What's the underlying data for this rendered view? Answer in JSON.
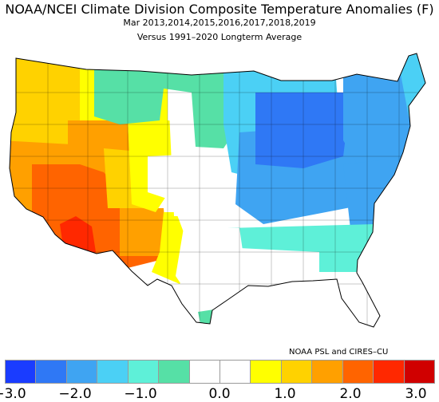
{
  "title": "NOAA/NCEI Climate Division Composite Temperature Anomalies (F)",
  "subtitle": "Mar  2013,2014,2015,2016,2017,2018,2019",
  "baseline": "Versus 1991–2020 Longterm Average",
  "credit": "NOAA PSL and CIRES–CU",
  "legend": {
    "colors": [
      "#1a3cff",
      "#2f78f5",
      "#3fa4f2",
      "#4bd0f5",
      "#5ef0d8",
      "#56e0a6",
      "#ffffff",
      "#ffffff",
      "#ffff00",
      "#ffd200",
      "#ffa000",
      "#ff6400",
      "#ff2800",
      "#d00000"
    ],
    "ticks": [
      "−3.0",
      "−2.0",
      "−1.0",
      "0.0",
      "1.0",
      "2.0",
      "3.0"
    ]
  },
  "regions": [
    {
      "id": "nw-coast",
      "fill": "#ffd200"
    },
    {
      "id": "idaho-montana",
      "fill": "#ffff00"
    },
    {
      "id": "great-basin",
      "fill": "#ffa000"
    },
    {
      "id": "california",
      "fill": "#ffa000"
    },
    {
      "id": "arizona",
      "fill": "#ff6400"
    },
    {
      "id": "desert-core",
      "fill": "#ff2800"
    },
    {
      "id": "southern-rockies",
      "fill": "#ffd200"
    },
    {
      "id": "new-mexico-west",
      "fill": "#ffa000"
    },
    {
      "id": "new-mexico-east",
      "fill": "#ffff00"
    },
    {
      "id": "wyoming-colorado",
      "fill": "#ffff00"
    },
    {
      "id": "dakotas-west",
      "fill": "#ffffff"
    },
    {
      "id": "northern-plains",
      "fill": "#56e0a6"
    },
    {
      "id": "southern-plains",
      "fill": "#ffffff"
    },
    {
      "id": "upper-midwest",
      "fill": "#4bd0f5"
    },
    {
      "id": "midwest",
      "fill": "#3fa4f2"
    },
    {
      "id": "great-lakes",
      "fill": "#2f78f5"
    },
    {
      "id": "northeast",
      "fill": "#3fa4f2"
    },
    {
      "id": "new-england-north",
      "fill": "#4bd0f5"
    },
    {
      "id": "mid-atlantic",
      "fill": "#3fa4f2"
    },
    {
      "id": "southeast",
      "fill": "#5ef0d8"
    },
    {
      "id": "gulf-coast",
      "fill": "#ffffff"
    },
    {
      "id": "texas-east",
      "fill": "#ffffff"
    },
    {
      "id": "florida",
      "fill": "#ffffff"
    },
    {
      "id": "south-texas-tip",
      "fill": "#56e0a6"
    }
  ]
}
